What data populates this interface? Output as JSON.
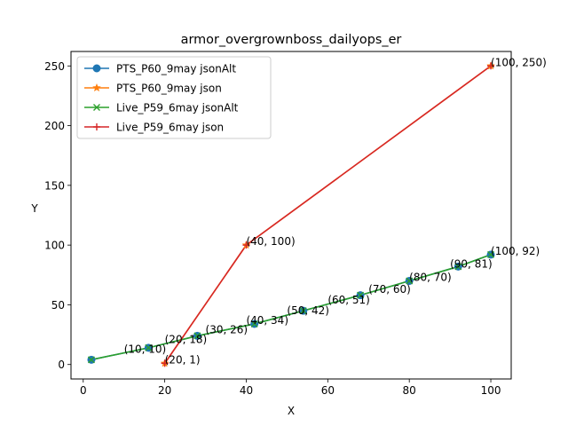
{
  "chart_data": {
    "type": "line",
    "title": "armor_overgrownboss_dailyops_er",
    "xlabel": "X",
    "ylabel": "Y",
    "xlim": [
      -3,
      105
    ],
    "ylim": [
      -12.1,
      262.1
    ],
    "xticks": [
      0,
      20,
      40,
      60,
      80,
      100
    ],
    "yticks": [
      0,
      50,
      100,
      150,
      200,
      250
    ],
    "legend_position": "upper-left",
    "series": [
      {
        "name": "PTS_P60_9may jsonAlt",
        "color": "#1f77b4",
        "marker": "circle",
        "x": [
          2,
          16,
          28,
          42,
          54,
          68,
          80,
          92,
          100
        ],
        "y": [
          4,
          14,
          24,
          34,
          45,
          58,
          70,
          82,
          92
        ]
      },
      {
        "name": "PTS_P60_9may json",
        "color": "#ff7f0e",
        "marker": "star",
        "x": [
          20,
          40,
          100
        ],
        "y": [
          1,
          100,
          250
        ]
      },
      {
        "name": "Live_P59_6may jsonAlt",
        "color": "#2ca02c",
        "marker": "x",
        "x": [
          2,
          16,
          28,
          42,
          54,
          68,
          80,
          92,
          100
        ],
        "y": [
          4,
          14,
          24,
          34,
          45,
          58,
          70,
          82,
          92
        ]
      },
      {
        "name": "Live_P59_6may json",
        "color": "#d62728",
        "marker": "plus",
        "x": [
          20,
          40,
          100
        ],
        "y": [
          1,
          100,
          250
        ]
      }
    ],
    "annotations": [
      {
        "text": "(10, 10)",
        "x": 10,
        "y": 10
      },
      {
        "text": "(20, 18)",
        "x": 20,
        "y": 18
      },
      {
        "text": "(30, 26)",
        "x": 30,
        "y": 26
      },
      {
        "text": "(40, 34)",
        "x": 40,
        "y": 34
      },
      {
        "text": "(50, 42)",
        "x": 50,
        "y": 42
      },
      {
        "text": "(60, 51)",
        "x": 60,
        "y": 51
      },
      {
        "text": "(70, 60)",
        "x": 70,
        "y": 60
      },
      {
        "text": "(80, 70)",
        "x": 80,
        "y": 70
      },
      {
        "text": "(90, 81)",
        "x": 90,
        "y": 81
      },
      {
        "text": "(100, 92)",
        "x": 100,
        "y": 92
      },
      {
        "text": "(20, 1)",
        "x": 20,
        "y": 1
      },
      {
        "text": "(40, 100)",
        "x": 40,
        "y": 100
      },
      {
        "text": "(100, 250)",
        "x": 100,
        "y": 250
      }
    ]
  }
}
